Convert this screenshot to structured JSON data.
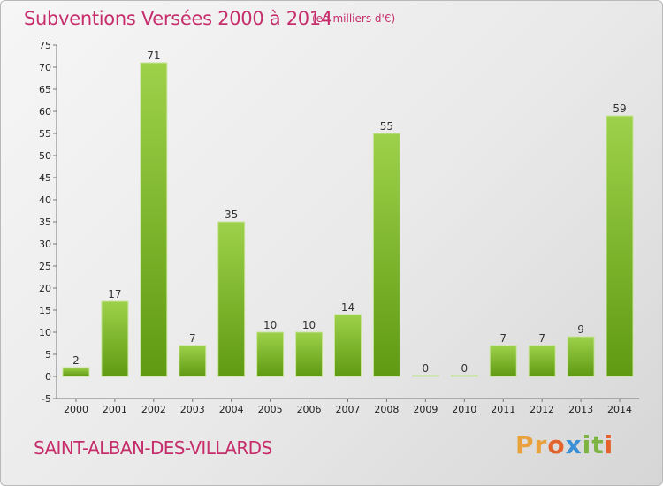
{
  "title": "Subventions Versées 2000 à 2014",
  "subtitle": "(en milliers d'€)",
  "location": "SAINT-ALBAN-DES-VILLARDS",
  "logo": {
    "letters": [
      "P",
      "r",
      "o",
      "x",
      "i",
      "t",
      "i"
    ],
    "colors": [
      "#e9a23b",
      "#e9a23b",
      "#e3632b",
      "#3b8fd6",
      "#7cb342",
      "#7cb342",
      "#e3632b"
    ]
  },
  "colors": {
    "bar_top": "#9ed14b",
    "bar_bottom": "#5f9a12",
    "accent": "#c62d6b"
  },
  "chart_data": {
    "type": "bar",
    "categories": [
      "2000",
      "2001",
      "2002",
      "2003",
      "2004",
      "2005",
      "2006",
      "2007",
      "2008",
      "2009",
      "2010",
      "2011",
      "2012",
      "2013",
      "2014"
    ],
    "values": [
      2,
      17,
      71,
      7,
      35,
      10,
      10,
      14,
      55,
      0,
      0,
      7,
      7,
      9,
      59
    ],
    "title": "Subventions Versées 2000 à 2014",
    "xlabel": "",
    "ylabel": "",
    "ylim": [
      -5,
      75
    ],
    "yticks": [
      -5,
      0,
      5,
      10,
      15,
      20,
      25,
      30,
      35,
      40,
      45,
      50,
      55,
      60,
      65,
      70,
      75
    ],
    "grid": false,
    "legend": "none"
  }
}
